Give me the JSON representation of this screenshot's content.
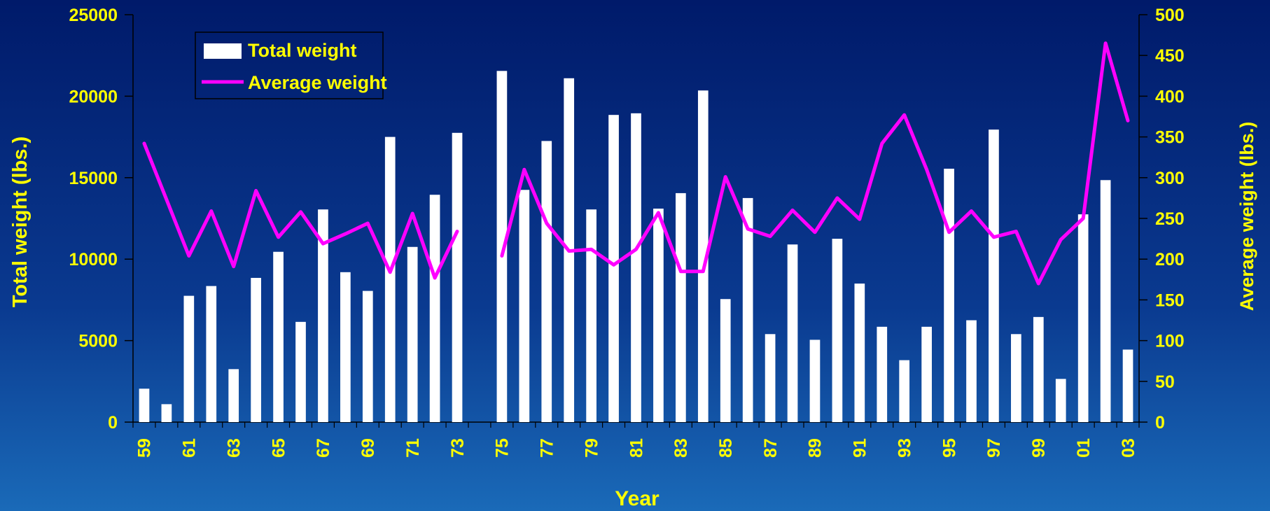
{
  "colors": {
    "text": "#ffff00",
    "bars": "#ffffff",
    "line": "#ff00ff",
    "axis": "#000000"
  },
  "chart_data": {
    "type": "bar",
    "xlabel": "Year",
    "ylabel_left": "Total weight (lbs.)",
    "ylabel_right": "Average weight (lbs.)",
    "ylim_left": [
      0,
      25000
    ],
    "ylim_right": [
      0,
      500
    ],
    "yticks_left": [
      0,
      5000,
      10000,
      15000,
      20000,
      25000
    ],
    "yticks_right": [
      0,
      50,
      100,
      150,
      200,
      250,
      300,
      350,
      400,
      450,
      500
    ],
    "legend_position": "top-left",
    "categories": [
      "59",
      "60",
      "61",
      "62",
      "63",
      "64",
      "65",
      "66",
      "67",
      "68",
      "69",
      "70",
      "71",
      "72",
      "73",
      "74",
      "75",
      "76",
      "77",
      "78",
      "79",
      "80",
      "81",
      "82",
      "83",
      "84",
      "85",
      "86",
      "87",
      "88",
      "89",
      "90",
      "91",
      "92",
      "93",
      "94",
      "95",
      "96",
      "97",
      "98",
      "99",
      "00",
      "01",
      "02",
      "03"
    ],
    "xtick_labels": [
      "59",
      "61",
      "63",
      "65",
      "67",
      "69",
      "71",
      "73",
      "75",
      "77",
      "79",
      "81",
      "83",
      "85",
      "87",
      "89",
      "91",
      "93",
      "95",
      "97",
      "99",
      "01",
      "03"
    ],
    "series": [
      {
        "name": "Total weight",
        "type": "bar",
        "axis": "left",
        "values": [
          2050,
          1100,
          7750,
          8350,
          3250,
          8850,
          10450,
          6150,
          13050,
          9200,
          8050,
          17500,
          10750,
          13950,
          17750,
          null,
          21550,
          14250,
          17250,
          21100,
          13050,
          18850,
          18950,
          13100,
          14050,
          20350,
          7550,
          13750,
          5400,
          10900,
          5050,
          11250,
          8500,
          5850,
          3800,
          5850,
          15550,
          6250,
          17950,
          5400,
          6450,
          2650,
          12750,
          14850,
          4450
        ]
      },
      {
        "name": "Average weight",
        "type": "line",
        "axis": "right",
        "values": [
          342,
          273,
          204,
          259,
          191,
          284,
          227,
          258,
          219,
          231,
          244,
          184,
          256,
          177,
          234,
          null,
          204,
          310,
          244,
          210,
          212,
          193,
          212,
          257,
          185,
          185,
          301,
          237,
          228,
          260,
          233,
          275,
          249,
          342,
          377,
          310,
          233,
          259,
          227,
          234,
          170,
          224,
          250,
          465,
          370
        ]
      }
    ]
  }
}
